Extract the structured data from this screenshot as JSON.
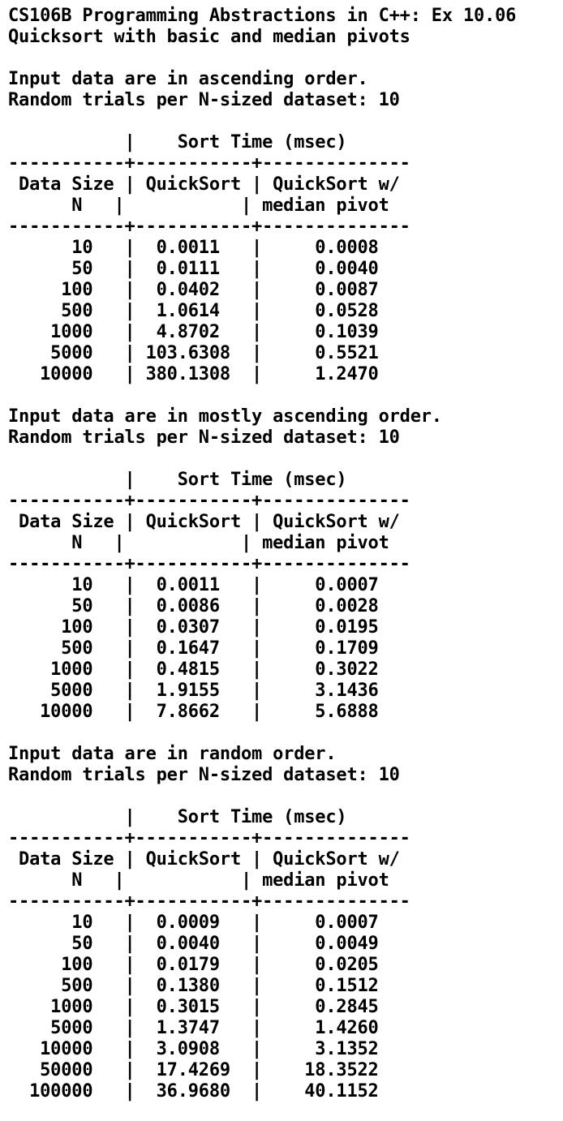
{
  "header": {
    "title_line": "CS106B Programming Abstractions in C++: Ex 10.06",
    "subtitle_line": "Quicksort with basic and median pivots"
  },
  "table_text": {
    "group_header": "Sort Time (msec)",
    "col_n_line1": "Data Size",
    "col_n_line2": "N",
    "col_quicksort": "QuickSort",
    "col_median_line1": "QuickSort w/",
    "col_median_line2": "median pivot"
  },
  "sections": [
    {
      "description": "Input data are in ascending order.",
      "trials": "Random trials per N-sized dataset: 10",
      "rows": [
        {
          "n": "10",
          "quicksort": "0.0011",
          "median": "0.0008"
        },
        {
          "n": "50",
          "quicksort": "0.0111",
          "median": "0.0040"
        },
        {
          "n": "100",
          "quicksort": "0.0402",
          "median": "0.0087"
        },
        {
          "n": "500",
          "quicksort": "1.0614",
          "median": "0.0528"
        },
        {
          "n": "1000",
          "quicksort": "4.8702",
          "median": "0.1039"
        },
        {
          "n": "5000",
          "quicksort": "103.6308",
          "median": "0.5521"
        },
        {
          "n": "10000",
          "quicksort": "380.1308",
          "median": "1.2470"
        }
      ]
    },
    {
      "description": "Input data are in mostly ascending order.",
      "trials": "Random trials per N-sized dataset: 10",
      "rows": [
        {
          "n": "10",
          "quicksort": "0.0011",
          "median": "0.0007"
        },
        {
          "n": "50",
          "quicksort": "0.0086",
          "median": "0.0028"
        },
        {
          "n": "100",
          "quicksort": "0.0307",
          "median": "0.0195"
        },
        {
          "n": "500",
          "quicksort": "0.1647",
          "median": "0.1709"
        },
        {
          "n": "1000",
          "quicksort": "0.4815",
          "median": "0.3022"
        },
        {
          "n": "5000",
          "quicksort": "1.9155",
          "median": "3.1436"
        },
        {
          "n": "10000",
          "quicksort": "7.8662",
          "median": "5.6888"
        }
      ]
    },
    {
      "description": "Input data are in random order.",
      "trials": "Random trials per N-sized dataset: 10",
      "rows": [
        {
          "n": "10",
          "quicksort": "0.0009",
          "median": "0.0007"
        },
        {
          "n": "50",
          "quicksort": "0.0040",
          "median": "0.0049"
        },
        {
          "n": "100",
          "quicksort": "0.0179",
          "median": "0.0205"
        },
        {
          "n": "500",
          "quicksort": "0.1380",
          "median": "0.1512"
        },
        {
          "n": "1000",
          "quicksort": "0.3015",
          "median": "0.2845"
        },
        {
          "n": "5000",
          "quicksort": "1.3747",
          "median": "1.4260"
        },
        {
          "n": "10000",
          "quicksort": "3.0908",
          "median": "3.1352"
        },
        {
          "n": "50000",
          "quicksort": "17.4269",
          "median": "18.3522"
        },
        {
          "n": "100000",
          "quicksort": "36.9680",
          "median": "40.1152"
        }
      ]
    }
  ]
}
